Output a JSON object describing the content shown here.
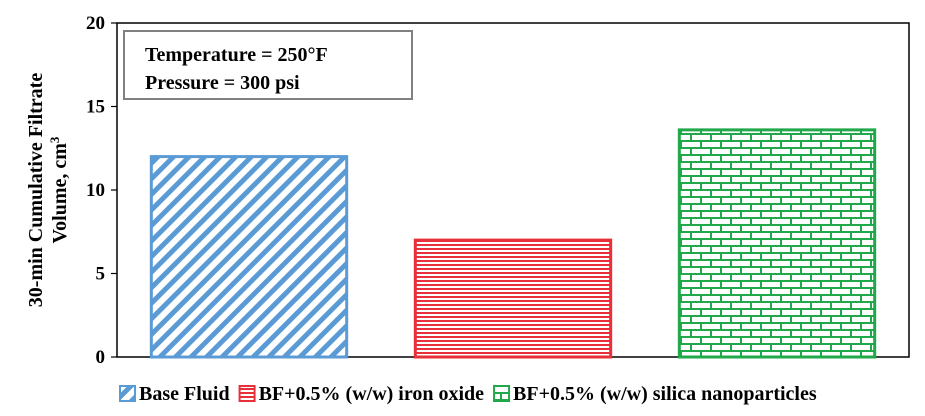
{
  "chart_data": {
    "type": "bar",
    "title": "",
    "xlabel": "",
    "ylabel_line1": "30-min Cumulative Filtrate",
    "ylabel_line2": "Volume, cm",
    "ylabel_sup": "3",
    "ylim": [
      0,
      20
    ],
    "yticks": [
      0,
      5,
      10,
      15,
      20
    ],
    "grid": false,
    "legend_position": "bottom",
    "annotation": {
      "line1": "Temperature = 250°F",
      "line2": "Pressure = 300 psi"
    },
    "series": [
      {
        "name": "Base Fluid",
        "value": 12,
        "color": "#5b9bd5",
        "pattern": "diagonal-hatch"
      },
      {
        "name": "BF+0.5% (w/w) iron oxide",
        "value": 7,
        "color": "#e8303a",
        "pattern": "horizontal-lines"
      },
      {
        "name": "BF+0.5% (w/w) silica nanoparticles",
        "value": 13.6,
        "color": "#21a84a",
        "pattern": "brick"
      }
    ]
  }
}
